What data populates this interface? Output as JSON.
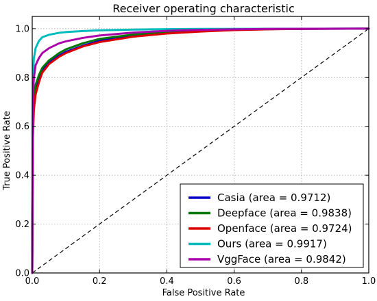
{
  "chart_data": {
    "type": "line",
    "title": "Receiver operating characteristic",
    "xlabel": "False Positive Rate",
    "ylabel": "True Positive Rate",
    "xlim": [
      0.0,
      1.0
    ],
    "ylim": [
      0.0,
      1.05
    ],
    "xticks": [
      0.0,
      0.2,
      0.4,
      0.6,
      0.8,
      1.0
    ],
    "xtick_labels": [
      "0.0",
      "0.2",
      "0.4",
      "0.6",
      "0.8",
      "1.0"
    ],
    "yticks": [
      0.0,
      0.2,
      0.4,
      0.6,
      0.8,
      1.0
    ],
    "ytick_labels": [
      "0.0",
      "0.2",
      "0.4",
      "0.6",
      "0.8",
      "1.0"
    ],
    "grid": true,
    "legend_position": "lower-right",
    "diagonal_reference": true,
    "series": [
      {
        "name": "Casia (area = 0.9712)",
        "color": "#0000cc",
        "points": [
          [
            0.0,
            0.0
          ],
          [
            0.002,
            0.6
          ],
          [
            0.005,
            0.71
          ],
          [
            0.01,
            0.76
          ],
          [
            0.02,
            0.8
          ],
          [
            0.03,
            0.83
          ],
          [
            0.05,
            0.86
          ],
          [
            0.08,
            0.89
          ],
          [
            0.1,
            0.905
          ],
          [
            0.15,
            0.93
          ],
          [
            0.2,
            0.95
          ],
          [
            0.3,
            0.97
          ],
          [
            0.4,
            0.982
          ],
          [
            0.5,
            0.99
          ],
          [
            0.6,
            0.995
          ],
          [
            0.7,
            0.998
          ],
          [
            0.8,
            0.999
          ],
          [
            1.0,
            1.0
          ]
        ]
      },
      {
        "name": "Deepface (area = 0.9838)",
        "color": "#007700",
        "points": [
          [
            0.0,
            0.0
          ],
          [
            0.002,
            0.62
          ],
          [
            0.005,
            0.72
          ],
          [
            0.01,
            0.77
          ],
          [
            0.02,
            0.81
          ],
          [
            0.03,
            0.84
          ],
          [
            0.05,
            0.87
          ],
          [
            0.08,
            0.9
          ],
          [
            0.1,
            0.915
          ],
          [
            0.15,
            0.94
          ],
          [
            0.2,
            0.958
          ],
          [
            0.3,
            0.976
          ],
          [
            0.4,
            0.987
          ],
          [
            0.5,
            0.993
          ],
          [
            0.6,
            0.997
          ],
          [
            0.7,
            0.999
          ],
          [
            1.0,
            1.0
          ]
        ]
      },
      {
        "name": "Openface (area = 0.9724)",
        "color": "#dd0000",
        "points": [
          [
            0.0,
            0.0
          ],
          [
            0.002,
            0.55
          ],
          [
            0.005,
            0.67
          ],
          [
            0.01,
            0.73
          ],
          [
            0.02,
            0.78
          ],
          [
            0.03,
            0.82
          ],
          [
            0.05,
            0.855
          ],
          [
            0.08,
            0.885
          ],
          [
            0.1,
            0.9
          ],
          [
            0.15,
            0.927
          ],
          [
            0.2,
            0.945
          ],
          [
            0.3,
            0.967
          ],
          [
            0.4,
            0.98
          ],
          [
            0.5,
            0.988
          ],
          [
            0.6,
            0.994
          ],
          [
            0.7,
            0.997
          ],
          [
            0.8,
            0.999
          ],
          [
            1.0,
            1.0
          ]
        ]
      },
      {
        "name": "Ours (area = 0.9917)",
        "color": "#00bbbb",
        "points": [
          [
            0.0,
            0.0
          ],
          [
            0.002,
            0.8
          ],
          [
            0.005,
            0.88
          ],
          [
            0.01,
            0.92
          ],
          [
            0.02,
            0.95
          ],
          [
            0.03,
            0.965
          ],
          [
            0.05,
            0.975
          ],
          [
            0.08,
            0.983
          ],
          [
            0.1,
            0.986
          ],
          [
            0.15,
            0.99
          ],
          [
            0.2,
            0.993
          ],
          [
            0.3,
            0.996
          ],
          [
            0.4,
            0.998
          ],
          [
            0.5,
            0.999
          ],
          [
            1.0,
            1.0
          ]
        ]
      },
      {
        "name": "VggFace (area = 0.9842)",
        "color": "#aa00aa",
        "points": [
          [
            0.0,
            0.0
          ],
          [
            0.002,
            0.72
          ],
          [
            0.005,
            0.8
          ],
          [
            0.01,
            0.85
          ],
          [
            0.02,
            0.88
          ],
          [
            0.03,
            0.9
          ],
          [
            0.05,
            0.92
          ],
          [
            0.08,
            0.94
          ],
          [
            0.1,
            0.948
          ],
          [
            0.15,
            0.962
          ],
          [
            0.2,
            0.972
          ],
          [
            0.3,
            0.984
          ],
          [
            0.4,
            0.991
          ],
          [
            0.5,
            0.995
          ],
          [
            0.6,
            0.997
          ],
          [
            0.7,
            0.999
          ],
          [
            1.0,
            1.0
          ]
        ]
      }
    ]
  }
}
